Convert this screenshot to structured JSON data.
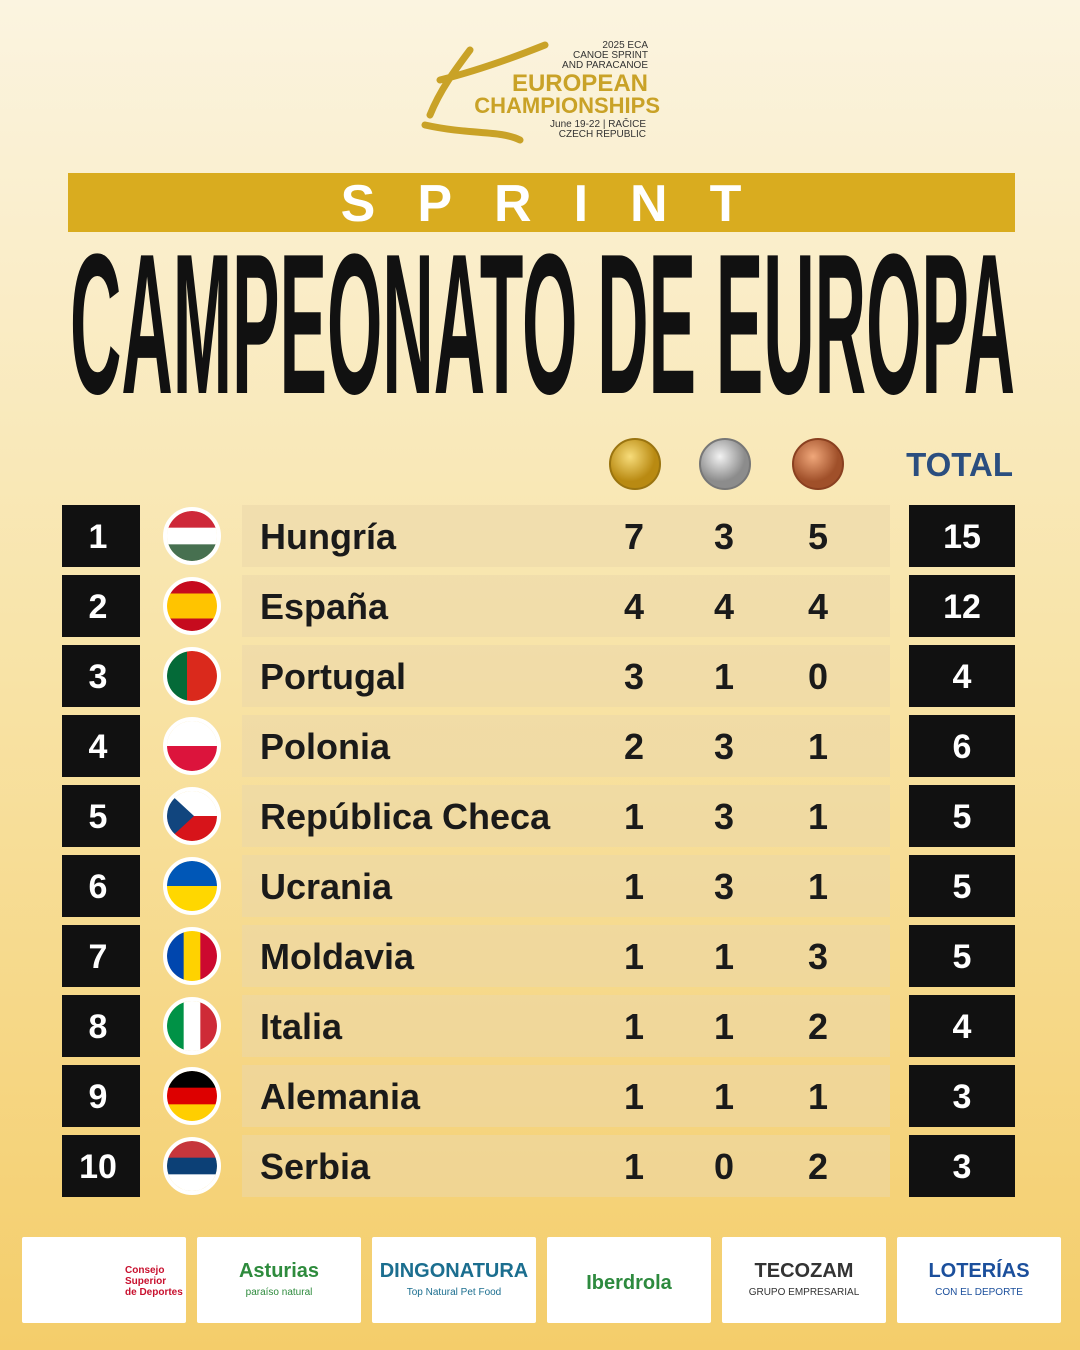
{
  "header": {
    "logo": [
      "2025 ECA",
      "CANOE SPRINT",
      "AND PARACANOE",
      "EUROPEAN",
      "CHAMPIONSHIPS",
      "June 19-22 | RAČICE",
      "CZECH REPUBLIC"
    ],
    "banner": "SPRINT",
    "title": "CAMPEONATO DE EUROPA"
  },
  "table": {
    "total_header": "TOTAL",
    "rows": [
      {
        "rank": 1,
        "country": "Hungría",
        "gold": 7,
        "silver": 3,
        "bronze": 5,
        "total": 15
      },
      {
        "rank": 2,
        "country": "España",
        "gold": 4,
        "silver": 4,
        "bronze": 4,
        "total": 12
      },
      {
        "rank": 3,
        "country": "Portugal",
        "gold": 3,
        "silver": 1,
        "bronze": 0,
        "total": 4
      },
      {
        "rank": 4,
        "country": "Polonia",
        "gold": 2,
        "silver": 3,
        "bronze": 1,
        "total": 6
      },
      {
        "rank": 5,
        "country": "República Checa",
        "gold": 1,
        "silver": 3,
        "bronze": 1,
        "total": 5
      },
      {
        "rank": 6,
        "country": "Ucrania",
        "gold": 1,
        "silver": 3,
        "bronze": 1,
        "total": 5
      },
      {
        "rank": 7,
        "country": "Moldavia",
        "gold": 1,
        "silver": 1,
        "bronze": 3,
        "total": 5
      },
      {
        "rank": 8,
        "country": "Italia",
        "gold": 1,
        "silver": 1,
        "bronze": 2,
        "total": 4
      },
      {
        "rank": 9,
        "country": "Alemania",
        "gold": 1,
        "silver": 1,
        "bronze": 1,
        "total": 3
      },
      {
        "rank": 10,
        "country": "Serbia",
        "gold": 1,
        "silver": 0,
        "bronze": 2,
        "total": 3
      }
    ]
  },
  "sponsors": [
    [
      "Consejo",
      "Superior",
      "de Deportes"
    ],
    [
      "Asturias",
      "paraíso natural"
    ],
    [
      "DINGONATURA",
      "Top Natural Pet Food"
    ],
    [
      "Iberdrola"
    ],
    [
      "TECOZAM",
      "GRUPO EMPRESARIAL"
    ],
    [
      "LOTERÍAS",
      "CON EL DEPORTE"
    ]
  ]
}
